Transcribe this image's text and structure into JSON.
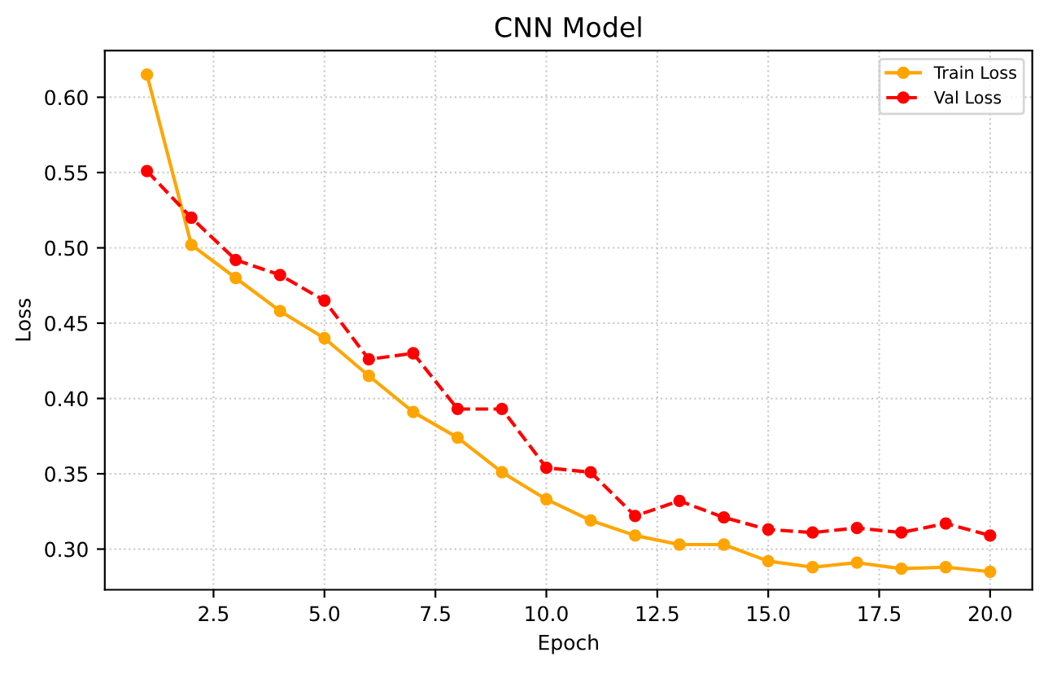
{
  "chart_data": {
    "type": "line",
    "title": "CNN Model",
    "xlabel": "Epoch",
    "ylabel": "Loss",
    "x": [
      1,
      2,
      3,
      4,
      5,
      6,
      7,
      8,
      9,
      10,
      11,
      12,
      13,
      14,
      15,
      16,
      17,
      18,
      19,
      20
    ],
    "series": [
      {
        "name": "Train Loss",
        "color": "#ffa500",
        "line_style": "solid",
        "values": [
          0.615,
          0.502,
          0.48,
          0.458,
          0.44,
          0.415,
          0.391,
          0.374,
          0.351,
          0.333,
          0.319,
          0.309,
          0.303,
          0.303,
          0.292,
          0.288,
          0.291,
          0.287,
          0.288,
          0.285
        ]
      },
      {
        "name": "Val Loss",
        "color": "#ff0000",
        "line_style": "dashed",
        "values": [
          0.551,
          0.52,
          0.492,
          0.482,
          0.465,
          0.426,
          0.43,
          0.393,
          0.393,
          0.354,
          0.351,
          0.322,
          0.332,
          0.321,
          0.313,
          0.311,
          0.314,
          0.311,
          0.317,
          0.309
        ]
      }
    ],
    "marker": "circle",
    "grid": true,
    "legend": "top right",
    "xlim": [
      0.05,
      20.95
    ],
    "ylim": [
      0.273,
      0.631
    ],
    "xticks": [
      2.5,
      {
        "value": 5,
        "label": "5.0"
      },
      7.5,
      {
        "value": 10,
        "label": "10.0"
      },
      12.5,
      {
        "value": 15,
        "label": "15.0"
      },
      17.5,
      {
        "value": 20,
        "label": "20.0"
      }
    ],
    "yticks": [
      {
        "value": 0.3,
        "label": "0.30"
      },
      0.35,
      {
        "value": 0.4,
        "label": "0.40"
      },
      0.45,
      {
        "value": 0.5,
        "label": "0.50"
      },
      0.55,
      {
        "value": 0.6,
        "label": "0.60"
      }
    ]
  }
}
